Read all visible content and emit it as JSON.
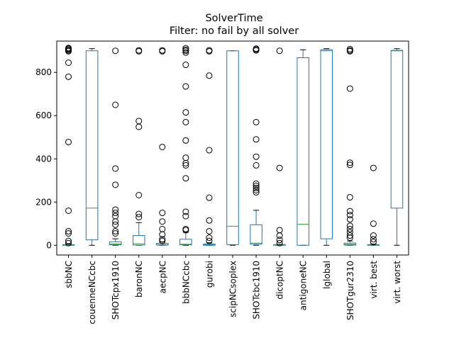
{
  "chart_data": {
    "type": "box",
    "title": "SolverTime",
    "subtitle": "Filter: no fail by all solver",
    "xlabel": "",
    "ylabel": "",
    "ylim": [
      -45,
      945
    ],
    "yticks": [
      0,
      200,
      400,
      600,
      800
    ],
    "grid": false,
    "colors": {
      "box": "#1f77b4",
      "median": "#2ca02c",
      "whisker": "#1f77b4",
      "flier": "#000000"
    },
    "categories": [
      "sbbNC",
      "couenneNCcbc",
      "SHOTcpx1910",
      "baronNC",
      "aecpNC",
      "bbbNCcbc",
      "gurobi",
      "scipNCsoplex",
      "SHOTcbc1910",
      "dicoptNC",
      "antigoneNC",
      "lglobal",
      "SHOTgur2310",
      "virt. best",
      "virt. worst"
    ],
    "boxes": [
      {
        "q1": 0,
        "median": 1,
        "q3": 3,
        "whislo": 0,
        "whishi": 6,
        "fliers": [
          10,
          20,
          55,
          65,
          160,
          478,
          780,
          845,
          898,
          902,
          906,
          910,
          913
        ]
      },
      {
        "q1": 25,
        "median": 172,
        "q3": 900,
        "whislo": 0,
        "whishi": 910,
        "fliers": []
      },
      {
        "q1": 2,
        "median": 6,
        "q3": 16,
        "whislo": 0,
        "whishi": 30,
        "fliers": [
          55,
          65,
          95,
          110,
          135,
          150,
          165,
          280,
          355,
          650,
          900
        ]
      },
      {
        "q1": 1,
        "median": 7,
        "q3": 45,
        "whislo": 0,
        "whishi": 105,
        "fliers": [
          130,
          145,
          232,
          548,
          575,
          898,
          902
        ]
      },
      {
        "q1": 1,
        "median": 3,
        "q3": 9,
        "whislo": 0,
        "whishi": 15,
        "fliers": [
          20,
          28,
          50,
          75,
          110,
          150,
          455,
          898,
          902
        ]
      },
      {
        "q1": 2,
        "median": 5,
        "q3": 28,
        "whislo": 0,
        "whishi": 60,
        "fliers": [
          70,
          75,
          135,
          155,
          310,
          370,
          380,
          405,
          485,
          570,
          615,
          735,
          835,
          892,
          900,
          905,
          912
        ]
      },
      {
        "q1": 0,
        "median": 2,
        "q3": 6,
        "whislo": 0,
        "whishi": 12,
        "fliers": [
          20,
          35,
          65,
          115,
          220,
          440,
          785,
          898,
          902
        ]
      },
      {
        "q1": 3,
        "median": 88,
        "q3": 900,
        "whislo": 0,
        "whishi": 900,
        "fliers": []
      },
      {
        "q1": 5,
        "median": 10,
        "q3": 95,
        "whislo": 0,
        "whishi": 162,
        "fliers": [
          245,
          255,
          265,
          275,
          285,
          370,
          410,
          490,
          570,
          902,
          906,
          910
        ]
      },
      {
        "q1": 0,
        "median": 1,
        "q3": 3,
        "whislo": 0,
        "whishi": 5,
        "fliers": [
          10,
          25,
          45,
          70,
          358,
          900
        ]
      },
      {
        "q1": 0,
        "median": 97,
        "q3": 868,
        "whislo": 0,
        "whishi": 905,
        "fliers": []
      },
      {
        "q1": 30,
        "median": 900,
        "q3": 905,
        "whislo": 0,
        "whishi": 910,
        "fliers": []
      },
      {
        "q1": 1,
        "median": 4,
        "q3": 10,
        "whislo": 0,
        "whishi": 20,
        "fliers": [
          35,
          45,
          60,
          75,
          90,
          120,
          140,
          158,
          222,
          372,
          382,
          725,
          898,
          902,
          908
        ]
      },
      {
        "q1": 0,
        "median": 1,
        "q3": 3,
        "whislo": 0,
        "whishi": 6,
        "fliers": [
          15,
          28,
          45,
          100,
          358
        ]
      },
      {
        "q1": 172,
        "median": 900,
        "q3": 902,
        "whislo": 0,
        "whishi": 910,
        "fliers": []
      }
    ]
  }
}
